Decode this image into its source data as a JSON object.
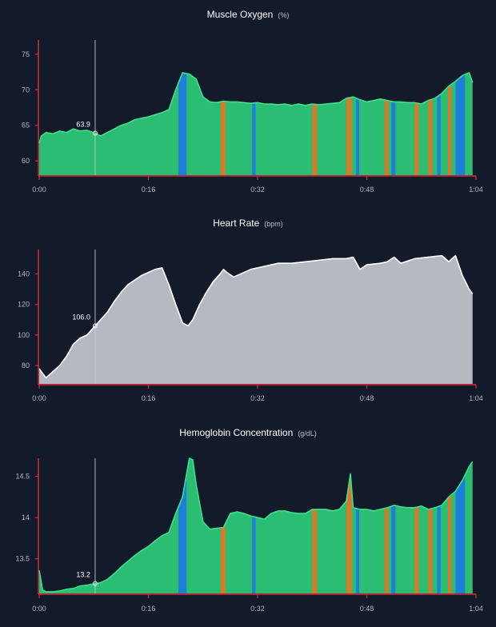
{
  "chart_data": [
    {
      "type": "area",
      "title": "Muscle Oxygen",
      "unit": "(%)",
      "xlabel": "",
      "ylabel": "",
      "x_ticks": [
        "0:00",
        "0:16",
        "0:32",
        "0:48",
        "1:04"
      ],
      "y_ticks": [
        60,
        65,
        70,
        75
      ],
      "xlim": [
        0,
        64
      ],
      "ylim": [
        58,
        77
      ],
      "cursor": {
        "x": 8.2,
        "value": 63.9,
        "label": "63.9"
      },
      "grid": false,
      "series": [
        {
          "name": "Muscle Oxygen",
          "line_color": "#3ee08f",
          "fill_color": "#2bbd72",
          "points": [
            [
              0,
              62.5
            ],
            [
              0.3,
              63.5
            ],
            [
              1,
              64
            ],
            [
              2,
              63.8
            ],
            [
              3,
              64.2
            ],
            [
              4,
              64
            ],
            [
              5,
              64.5
            ],
            [
              6,
              64.2
            ],
            [
              7,
              64.3
            ],
            [
              8.2,
              63.9
            ],
            [
              9,
              63.5
            ],
            [
              10,
              64
            ],
            [
              11,
              64.5
            ],
            [
              12,
              65
            ],
            [
              13,
              65.3
            ],
            [
              14,
              65.8
            ],
            [
              15,
              66
            ],
            [
              16,
              66.2
            ],
            [
              17,
              66.5
            ],
            [
              18,
              66.8
            ],
            [
              19,
              67.2
            ],
            [
              20,
              70
            ],
            [
              21,
              72.4
            ],
            [
              22,
              72.2
            ],
            [
              23,
              71.5
            ],
            [
              24,
              69
            ],
            [
              25,
              68.3
            ],
            [
              26,
              68.2
            ],
            [
              27,
              68.4
            ],
            [
              28,
              68.3
            ],
            [
              29,
              68.3
            ],
            [
              30,
              68.2
            ],
            [
              31,
              68.1
            ],
            [
              32,
              68.2
            ],
            [
              33,
              68
            ],
            [
              34,
              68
            ],
            [
              35,
              67.9
            ],
            [
              36,
              68
            ],
            [
              37,
              67.8
            ],
            [
              38,
              68
            ],
            [
              39,
              67.8
            ],
            [
              40,
              68
            ],
            [
              41,
              67.9
            ],
            [
              42,
              68
            ],
            [
              43,
              68.1
            ],
            [
              44,
              68.2
            ],
            [
              45,
              68.8
            ],
            [
              46,
              69
            ],
            [
              47,
              68.6
            ],
            [
              48,
              68.3
            ],
            [
              49,
              68.5
            ],
            [
              50,
              68.7
            ],
            [
              51,
              68.5
            ],
            [
              52,
              68.3
            ],
            [
              53,
              68.3
            ],
            [
              54,
              68.2
            ],
            [
              55,
              68.2
            ],
            [
              56,
              68
            ],
            [
              57,
              68.5
            ],
            [
              58,
              68.8
            ],
            [
              59,
              69.5
            ],
            [
              60,
              70.5
            ],
            [
              61,
              71.2
            ],
            [
              62,
              72
            ],
            [
              63,
              72.4
            ],
            [
              63.5,
              71
            ]
          ]
        }
      ],
      "bands": [
        {
          "start": 20.4,
          "end": 21.6,
          "color": "#1e7fd8",
          "name": "blue"
        },
        {
          "start": 26.6,
          "end": 27.3,
          "color": "#d97a2b",
          "name": "orange"
        },
        {
          "start": 31.2,
          "end": 31.7,
          "color": "#1e7fd8",
          "name": "blue"
        },
        {
          "start": 40.0,
          "end": 40.7,
          "color": "#d97a2b",
          "name": "orange"
        },
        {
          "start": 45.0,
          "end": 45.8,
          "color": "#d97a2b",
          "name": "orange"
        },
        {
          "start": 46.4,
          "end": 46.9,
          "color": "#1e7fd8",
          "name": "blue"
        },
        {
          "start": 50.6,
          "end": 51.2,
          "color": "#d97a2b",
          "name": "orange"
        },
        {
          "start": 51.6,
          "end": 52.2,
          "color": "#1e7fd8",
          "name": "blue"
        },
        {
          "start": 55.0,
          "end": 55.6,
          "color": "#d97a2b",
          "name": "orange"
        },
        {
          "start": 57.0,
          "end": 57.6,
          "color": "#d97a2b",
          "name": "orange"
        },
        {
          "start": 58.3,
          "end": 58.8,
          "color": "#1e7fd8",
          "name": "blue"
        },
        {
          "start": 59.9,
          "end": 60.4,
          "color": "#d97a2b",
          "name": "orange"
        },
        {
          "start": 61.0,
          "end": 62.4,
          "color": "#1e7fd8",
          "name": "blue"
        }
      ]
    },
    {
      "type": "area",
      "title": "Heart Rate",
      "unit": "(bpm)",
      "xlabel": "",
      "ylabel": "",
      "x_ticks": [
        "0:00",
        "0:16",
        "0:32",
        "0:48",
        "1:04"
      ],
      "y_ticks": [
        80,
        100,
        120,
        140
      ],
      "xlim": [
        0,
        64
      ],
      "ylim": [
        68,
        156
      ],
      "cursor": {
        "x": 8.2,
        "value": 106.0,
        "label": "106.0"
      },
      "grid": false,
      "series": [
        {
          "name": "Heart Rate",
          "line_color": "#ffffff",
          "fill_color": "#b4b9c2",
          "points": [
            [
              0,
              78
            ],
            [
              0.3,
              76
            ],
            [
              1,
              72
            ],
            [
              2,
              76
            ],
            [
              3,
              80
            ],
            [
              4,
              86
            ],
            [
              5,
              94
            ],
            [
              6,
              98
            ],
            [
              7,
              100
            ],
            [
              8.2,
              106
            ],
            [
              9,
              110
            ],
            [
              10,
              115
            ],
            [
              11,
              122
            ],
            [
              12,
              128
            ],
            [
              13,
              133
            ],
            [
              14,
              136
            ],
            [
              15,
              139
            ],
            [
              16,
              141
            ],
            [
              17,
              143
            ],
            [
              18,
              144
            ],
            [
              19,
              133
            ],
            [
              20,
              120
            ],
            [
              21,
              108
            ],
            [
              21.8,
              106
            ],
            [
              22.5,
              110
            ],
            [
              23.5,
              120
            ],
            [
              24.5,
              128
            ],
            [
              25.5,
              135
            ],
            [
              26.5,
              140
            ],
            [
              27,
              143
            ],
            [
              27.5,
              141
            ],
            [
              28.5,
              138
            ],
            [
              29.5,
              140
            ],
            [
              31,
              143
            ],
            [
              33,
              145
            ],
            [
              35,
              147
            ],
            [
              37,
              147
            ],
            [
              39,
              148
            ],
            [
              41,
              149
            ],
            [
              43,
              150
            ],
            [
              45,
              150
            ],
            [
              46,
              151
            ],
            [
              47,
              143
            ],
            [
              48,
              146
            ],
            [
              50,
              147
            ],
            [
              51,
              148
            ],
            [
              52,
              151
            ],
            [
              53,
              147
            ],
            [
              55,
              150
            ],
            [
              57,
              151
            ],
            [
              59,
              152
            ],
            [
              60,
              148
            ],
            [
              61,
              152
            ],
            [
              62,
              139
            ],
            [
              63,
              130
            ],
            [
              63.5,
              127
            ]
          ]
        }
      ],
      "bands": []
    },
    {
      "type": "area",
      "title": "Hemoglobin Concentration",
      "unit": "(g/dL)",
      "xlabel": "",
      "ylabel": "",
      "x_ticks": [
        "0:00",
        "0:16",
        "0:32",
        "0:48",
        "1:04"
      ],
      "y_ticks": [
        13.5,
        14.0,
        14.5
      ],
      "xlim": [
        0,
        64
      ],
      "ylim": [
        13.08,
        14.72
      ],
      "cursor": {
        "x": 8.2,
        "value": 13.2,
        "label": "13.2"
      },
      "grid": false,
      "series": [
        {
          "name": "Hemoglobin Concentration",
          "line_color": "#3ee08f",
          "fill_color": "#2bbd72",
          "points": [
            [
              0,
              13.36
            ],
            [
              0.5,
              13.12
            ],
            [
              1,
              13.1
            ],
            [
              2,
              13.1
            ],
            [
              3,
              13.11
            ],
            [
              4,
              13.13
            ],
            [
              5,
              13.14
            ],
            [
              6,
              13.17
            ],
            [
              7,
              13.18
            ],
            [
              8.2,
              13.2
            ],
            [
              9,
              13.21
            ],
            [
              10,
              13.25
            ],
            [
              11,
              13.32
            ],
            [
              12,
              13.4
            ],
            [
              13,
              13.47
            ],
            [
              14,
              13.54
            ],
            [
              15,
              13.6
            ],
            [
              16,
              13.65
            ],
            [
              17,
              13.72
            ],
            [
              18,
              13.78
            ],
            [
              19,
              13.82
            ],
            [
              20,
              14.05
            ],
            [
              21,
              14.25
            ],
            [
              22,
              14.72
            ],
            [
              22.5,
              14.7
            ],
            [
              23,
              14.4
            ],
            [
              24,
              13.95
            ],
            [
              25,
              13.86
            ],
            [
              26,
              13.87
            ],
            [
              27,
              13.88
            ],
            [
              28,
              14.05
            ],
            [
              29,
              14.07
            ],
            [
              30,
              14.05
            ],
            [
              31,
              14.02
            ],
            [
              32,
              14.0
            ],
            [
              33,
              13.98
            ],
            [
              34,
              14.05
            ],
            [
              35,
              14.08
            ],
            [
              36,
              14.08
            ],
            [
              37,
              14.06
            ],
            [
              38,
              14.05
            ],
            [
              39,
              14.05
            ],
            [
              40,
              14.1
            ],
            [
              41,
              14.1
            ],
            [
              42,
              14.1
            ],
            [
              43,
              14.08
            ],
            [
              44,
              14.1
            ],
            [
              45,
              14.2
            ],
            [
              45.6,
              14.53
            ],
            [
              46,
              14.12
            ],
            [
              47,
              14.1
            ],
            [
              48,
              14.1
            ],
            [
              49,
              14.08
            ],
            [
              50,
              14.1
            ],
            [
              51,
              14.12
            ],
            [
              52,
              14.15
            ],
            [
              53,
              14.13
            ],
            [
              54,
              14.12
            ],
            [
              55,
              14.12
            ],
            [
              56,
              14.14
            ],
            [
              57,
              14.1
            ],
            [
              58,
              14.12
            ],
            [
              59,
              14.15
            ],
            [
              60,
              14.25
            ],
            [
              61,
              14.32
            ],
            [
              62,
              14.45
            ],
            [
              63,
              14.62
            ],
            [
              63.5,
              14.68
            ]
          ]
        }
      ],
      "bands": [
        {
          "start": 20.4,
          "end": 21.6,
          "color": "#1e7fd8",
          "name": "blue"
        },
        {
          "start": 26.6,
          "end": 27.3,
          "color": "#d97a2b",
          "name": "orange"
        },
        {
          "start": 31.2,
          "end": 31.7,
          "color": "#1e7fd8",
          "name": "blue"
        },
        {
          "start": 40.0,
          "end": 40.7,
          "color": "#d97a2b",
          "name": "orange"
        },
        {
          "start": 45.0,
          "end": 45.8,
          "color": "#d97a2b",
          "name": "orange"
        },
        {
          "start": 46.4,
          "end": 46.9,
          "color": "#1e7fd8",
          "name": "blue"
        },
        {
          "start": 50.6,
          "end": 51.2,
          "color": "#d97a2b",
          "name": "orange"
        },
        {
          "start": 51.6,
          "end": 52.2,
          "color": "#1e7fd8",
          "name": "blue"
        },
        {
          "start": 55.0,
          "end": 55.6,
          "color": "#d97a2b",
          "name": "orange"
        },
        {
          "start": 57.0,
          "end": 57.6,
          "color": "#d97a2b",
          "name": "orange"
        },
        {
          "start": 58.3,
          "end": 58.8,
          "color": "#1e7fd8",
          "name": "blue"
        },
        {
          "start": 59.9,
          "end": 60.4,
          "color": "#d97a2b",
          "name": "orange"
        },
        {
          "start": 61.0,
          "end": 62.4,
          "color": "#1e7fd8",
          "name": "blue"
        }
      ]
    }
  ],
  "theme": {
    "background": "#131a2a",
    "axis_color": "#e02a3a",
    "cursor_line": "#c8cdd6",
    "tick_text": "#aeb7c6",
    "title_text": "#ffffff",
    "unit_text": "#b6bfce"
  }
}
